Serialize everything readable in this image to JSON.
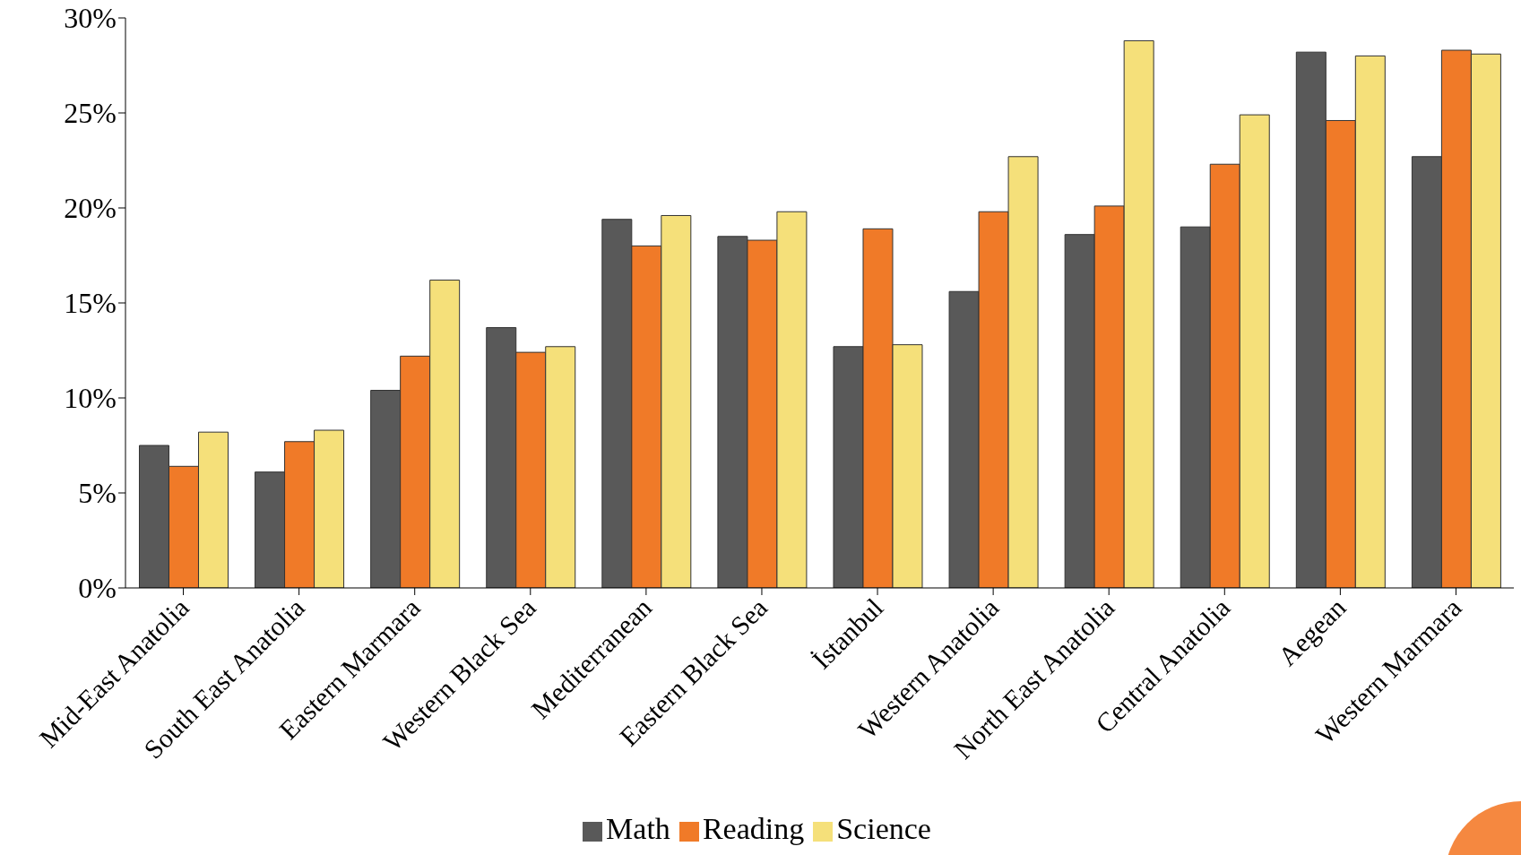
{
  "chart_data": {
    "type": "bar",
    "categories": [
      "Mid-East Anatolia",
      "South East Anatolia",
      "Eastern Marmara",
      "Western Black Sea",
      "Mediterranean",
      "Eastern Black Sea",
      "İstanbul",
      "Western Anatolia",
      "North East Anatolia",
      "Central Anatolia",
      "Aegean",
      "Western Marmara"
    ],
    "series": [
      {
        "name": "Math",
        "color": "#595959",
        "values": [
          7.5,
          6.1,
          10.4,
          13.7,
          19.4,
          18.5,
          12.7,
          15.6,
          18.6,
          19.0,
          28.2,
          22.7
        ]
      },
      {
        "name": "Reading",
        "color": "#f07a28",
        "values": [
          6.4,
          7.7,
          12.2,
          12.4,
          18.0,
          18.3,
          18.9,
          19.8,
          20.1,
          22.3,
          24.6,
          28.3
        ]
      },
      {
        "name": "Science",
        "color": "#f5e07a",
        "values": [
          8.2,
          8.3,
          16.2,
          12.7,
          19.6,
          19.8,
          12.8,
          22.7,
          28.8,
          24.9,
          28.0,
          28.1
        ]
      }
    ],
    "ylim": [
      0,
      30
    ],
    "yticks": [
      {
        "value": 0,
        "label": "0%"
      },
      {
        "value": 5,
        "label": "5%"
      },
      {
        "value": 10,
        "label": "10%"
      },
      {
        "value": 15,
        "label": "15%"
      },
      {
        "value": 20,
        "label": "20%"
      },
      {
        "value": 25,
        "label": "25%"
      },
      {
        "value": 30,
        "label": "30%"
      }
    ],
    "grid": false,
    "legend": "bottom"
  }
}
